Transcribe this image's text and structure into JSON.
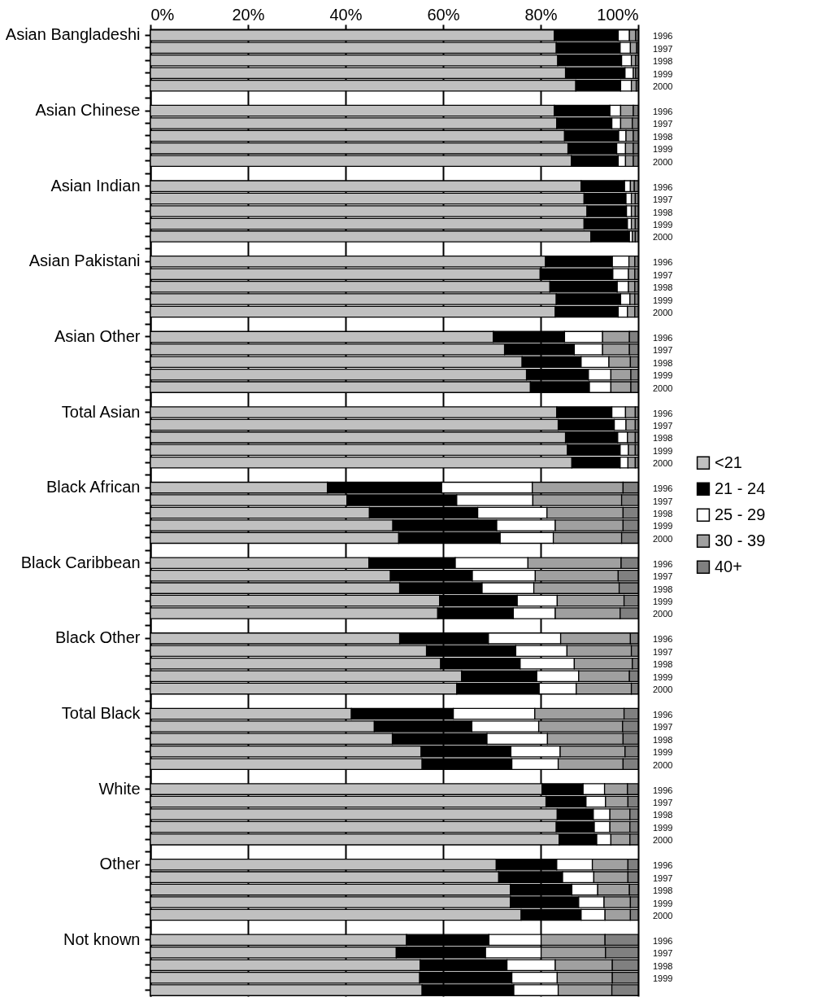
{
  "chart_data": {
    "type": "bar",
    "orientation": "horizontal",
    "stacked": true,
    "categories": [
      "Asian Bangladeshi",
      null,
      null,
      null,
      null,
      null,
      "Asian Chinese",
      null,
      null,
      null,
      null,
      null,
      "Asian Indian",
      null,
      null,
      null,
      null,
      null,
      "Asian Pakistani",
      null,
      null,
      null,
      null,
      null,
      "Asian Other",
      null,
      null,
      null,
      null,
      null,
      "Total Asian",
      null,
      null,
      null,
      null,
      null,
      "Black African",
      null,
      null,
      null,
      null,
      null,
      "Black Caribbean",
      null,
      null,
      null,
      null,
      null,
      "Black Other",
      null,
      null,
      null,
      null,
      null,
      "Total Black",
      null,
      null,
      null,
      null,
      null,
      "White",
      null,
      null,
      null,
      null,
      null,
      "Other",
      null,
      null,
      null,
      null,
      null,
      "Not known",
      null,
      null,
      null,
      null
    ],
    "y2_categories": [
      "1996",
      "1997",
      "1998",
      "1999",
      "2000",
      null,
      "1996",
      "1997",
      "1998",
      "1999",
      "2000",
      null,
      "1996",
      "1997",
      "1998",
      "1999",
      "2000",
      null,
      "1996",
      "1997",
      "1998",
      "1999",
      "2000",
      null,
      "1996",
      "1997",
      "1998",
      "1999",
      "2000",
      null,
      "1996",
      "1997",
      "1998",
      "1999",
      "2000",
      null,
      "1996",
      "1997",
      "1998",
      "1999",
      "2000",
      null,
      "1996",
      "1997",
      "1998",
      "1999",
      "2000",
      null,
      "1996",
      "1997",
      "1998",
      "1999",
      "2000",
      null,
      "1996",
      "1997",
      "1998",
      "1999",
      "2000",
      null,
      "1996",
      "1997",
      "1998",
      "1999",
      "2000",
      null,
      "1996",
      "1997",
      "1998",
      "1999",
      "2000",
      null,
      "1996",
      "1997",
      "1998",
      "1999",
      null
    ],
    "series": [
      {
        "name": "<21",
        "color": "#c0c0c0",
        "values": [
          82.8,
          83.2,
          83.5,
          85.1,
          87.2,
          null,
          82.8,
          83.3,
          84.9,
          85.6,
          86.3,
          null,
          88.3,
          88.9,
          89.5,
          88.9,
          90.3,
          null,
          81.0,
          79.9,
          81.9,
          83.2,
          83.0,
          null,
          70.3,
          72.6,
          76.2,
          77.1,
          77.9,
          null,
          83.3,
          83.6,
          85.1,
          85.5,
          86.4,
          null,
          36.3,
          40.3,
          44.9,
          49.7,
          50.9,
          null,
          44.8,
          49.2,
          51.1,
          59.3,
          58.9,
          null,
          51.1,
          56.6,
          59.5,
          63.8,
          62.8,
          null,
          41.2,
          45.9,
          49.6,
          55.5,
          55.7,
          null,
          80.3,
          81.1,
          83.4,
          83.2,
          83.8,
          null,
          70.9,
          71.4,
          73.8,
          73.8,
          76.0,
          null,
          52.5,
          50.4,
          55.3,
          55.2,
          55.7
        ]
      },
      {
        "name": "21 - 24",
        "color": "#000000",
        "values": [
          13.1,
          13.1,
          13.1,
          12.2,
          9.2,
          null,
          11.4,
          11.3,
          11.1,
          10.0,
          9.6,
          null,
          8.9,
          8.6,
          8.1,
          8.9,
          7.9,
          null,
          13.7,
          14.9,
          13.8,
          13.2,
          12.9,
          null,
          14.6,
          14.3,
          12.1,
          12.7,
          12.1,
          null,
          11.3,
          11.5,
          10.7,
          10.8,
          9.9,
          null,
          23.4,
          22.5,
          22.2,
          21.3,
          20.8,
          null,
          17.7,
          16.8,
          16.9,
          15.9,
          15.5,
          null,
          18.2,
          18.3,
          16.3,
          15.4,
          16.9,
          null,
          20.9,
          20.0,
          19.4,
          18.4,
          18.4,
          null,
          8.4,
          8.2,
          7.4,
          7.8,
          7.7,
          null,
          12.4,
          13.1,
          12.6,
          14.0,
          12.3,
          null,
          16.9,
          18.3,
          17.8,
          18.9,
          18.8
        ]
      },
      {
        "name": "25 - 29",
        "color": "#ffffff",
        "values": [
          2.3,
          2.1,
          2.0,
          1.7,
          2.2,
          null,
          2.2,
          1.8,
          1.5,
          1.8,
          1.5,
          null,
          1.2,
          1.1,
          1.0,
          0.8,
          0.6,
          null,
          3.4,
          3.2,
          2.3,
          1.9,
          1.9,
          null,
          7.8,
          5.8,
          5.7,
          4.6,
          4.4,
          null,
          2.8,
          2.4,
          2.0,
          1.7,
          1.6,
          null,
          18.6,
          15.6,
          14.2,
          12.0,
          10.9,
          null,
          14.9,
          12.9,
          10.6,
          8.2,
          8.6,
          null,
          14.8,
          10.5,
          11.1,
          8.6,
          7.6,
          null,
          16.7,
          13.7,
          12.4,
          10.1,
          9.5,
          null,
          4.4,
          4.0,
          3.4,
          3.2,
          2.9,
          null,
          7.3,
          6.4,
          5.3,
          5.2,
          4.9,
          null,
          10.7,
          11.4,
          9.9,
          9.3,
          9.1
        ]
      },
      {
        "name": "30 - 39",
        "color": "#a0a0a0",
        "values": [
          1.3,
          1.3,
          0.9,
          0.5,
          1.0,
          null,
          2.6,
          2.4,
          1.5,
          1.6,
          1.6,
          null,
          0.8,
          0.8,
          0.8,
          0.8,
          0.6,
          null,
          1.2,
          1.3,
          1.3,
          1.0,
          1.5,
          null,
          5.5,
          5.5,
          4.4,
          4.1,
          4.1,
          null,
          2.0,
          1.9,
          1.6,
          1.4,
          1.5,
          null,
          18.6,
          18.2,
          15.6,
          13.9,
          14.0,
          null,
          19.1,
          17.0,
          17.5,
          13.7,
          13.3,
          null,
          14.3,
          13.2,
          11.9,
          10.4,
          11.3,
          null,
          18.3,
          17.2,
          15.5,
          13.3,
          13.3,
          null,
          4.7,
          4.6,
          4.1,
          4.1,
          3.9,
          null,
          7.3,
          7.0,
          6.5,
          5.4,
          5.2,
          null,
          13.1,
          13.2,
          11.7,
          11.3,
          11.0
        ]
      },
      {
        "name": "40+",
        "color": "#808080",
        "values": [
          0.5,
          0.3,
          0.5,
          0.5,
          0.4,
          null,
          1.0,
          1.2,
          1.0,
          1.0,
          1.0,
          null,
          0.8,
          0.6,
          0.6,
          0.6,
          0.6,
          null,
          0.7,
          0.7,
          0.7,
          0.7,
          0.7,
          null,
          1.8,
          1.8,
          1.6,
          1.5,
          1.5,
          null,
          0.6,
          0.6,
          0.6,
          0.6,
          0.6,
          null,
          3.1,
          3.4,
          3.1,
          3.1,
          3.4,
          null,
          3.5,
          4.1,
          3.9,
          2.9,
          3.7,
          null,
          1.6,
          1.4,
          1.2,
          1.8,
          1.4,
          null,
          2.9,
          3.2,
          3.1,
          2.7,
          3.1,
          null,
          2.2,
          2.1,
          1.7,
          1.7,
          1.7,
          null,
          2.1,
          2.1,
          1.8,
          1.6,
          1.6,
          null,
          6.8,
          6.7,
          5.3,
          5.3,
          5.4
        ]
      }
    ],
    "xlim": [
      0,
      100
    ],
    "xticks": [
      {
        "value": 0,
        "label": "0%"
      },
      {
        "value": 20,
        "label": "20%"
      },
      {
        "value": 40,
        "label": "40%"
      },
      {
        "value": 60,
        "label": "60%"
      },
      {
        "value": 80,
        "label": "80%"
      },
      {
        "value": 100,
        "label": "100%"
      }
    ],
    "grid": "x",
    "legend": "right"
  }
}
